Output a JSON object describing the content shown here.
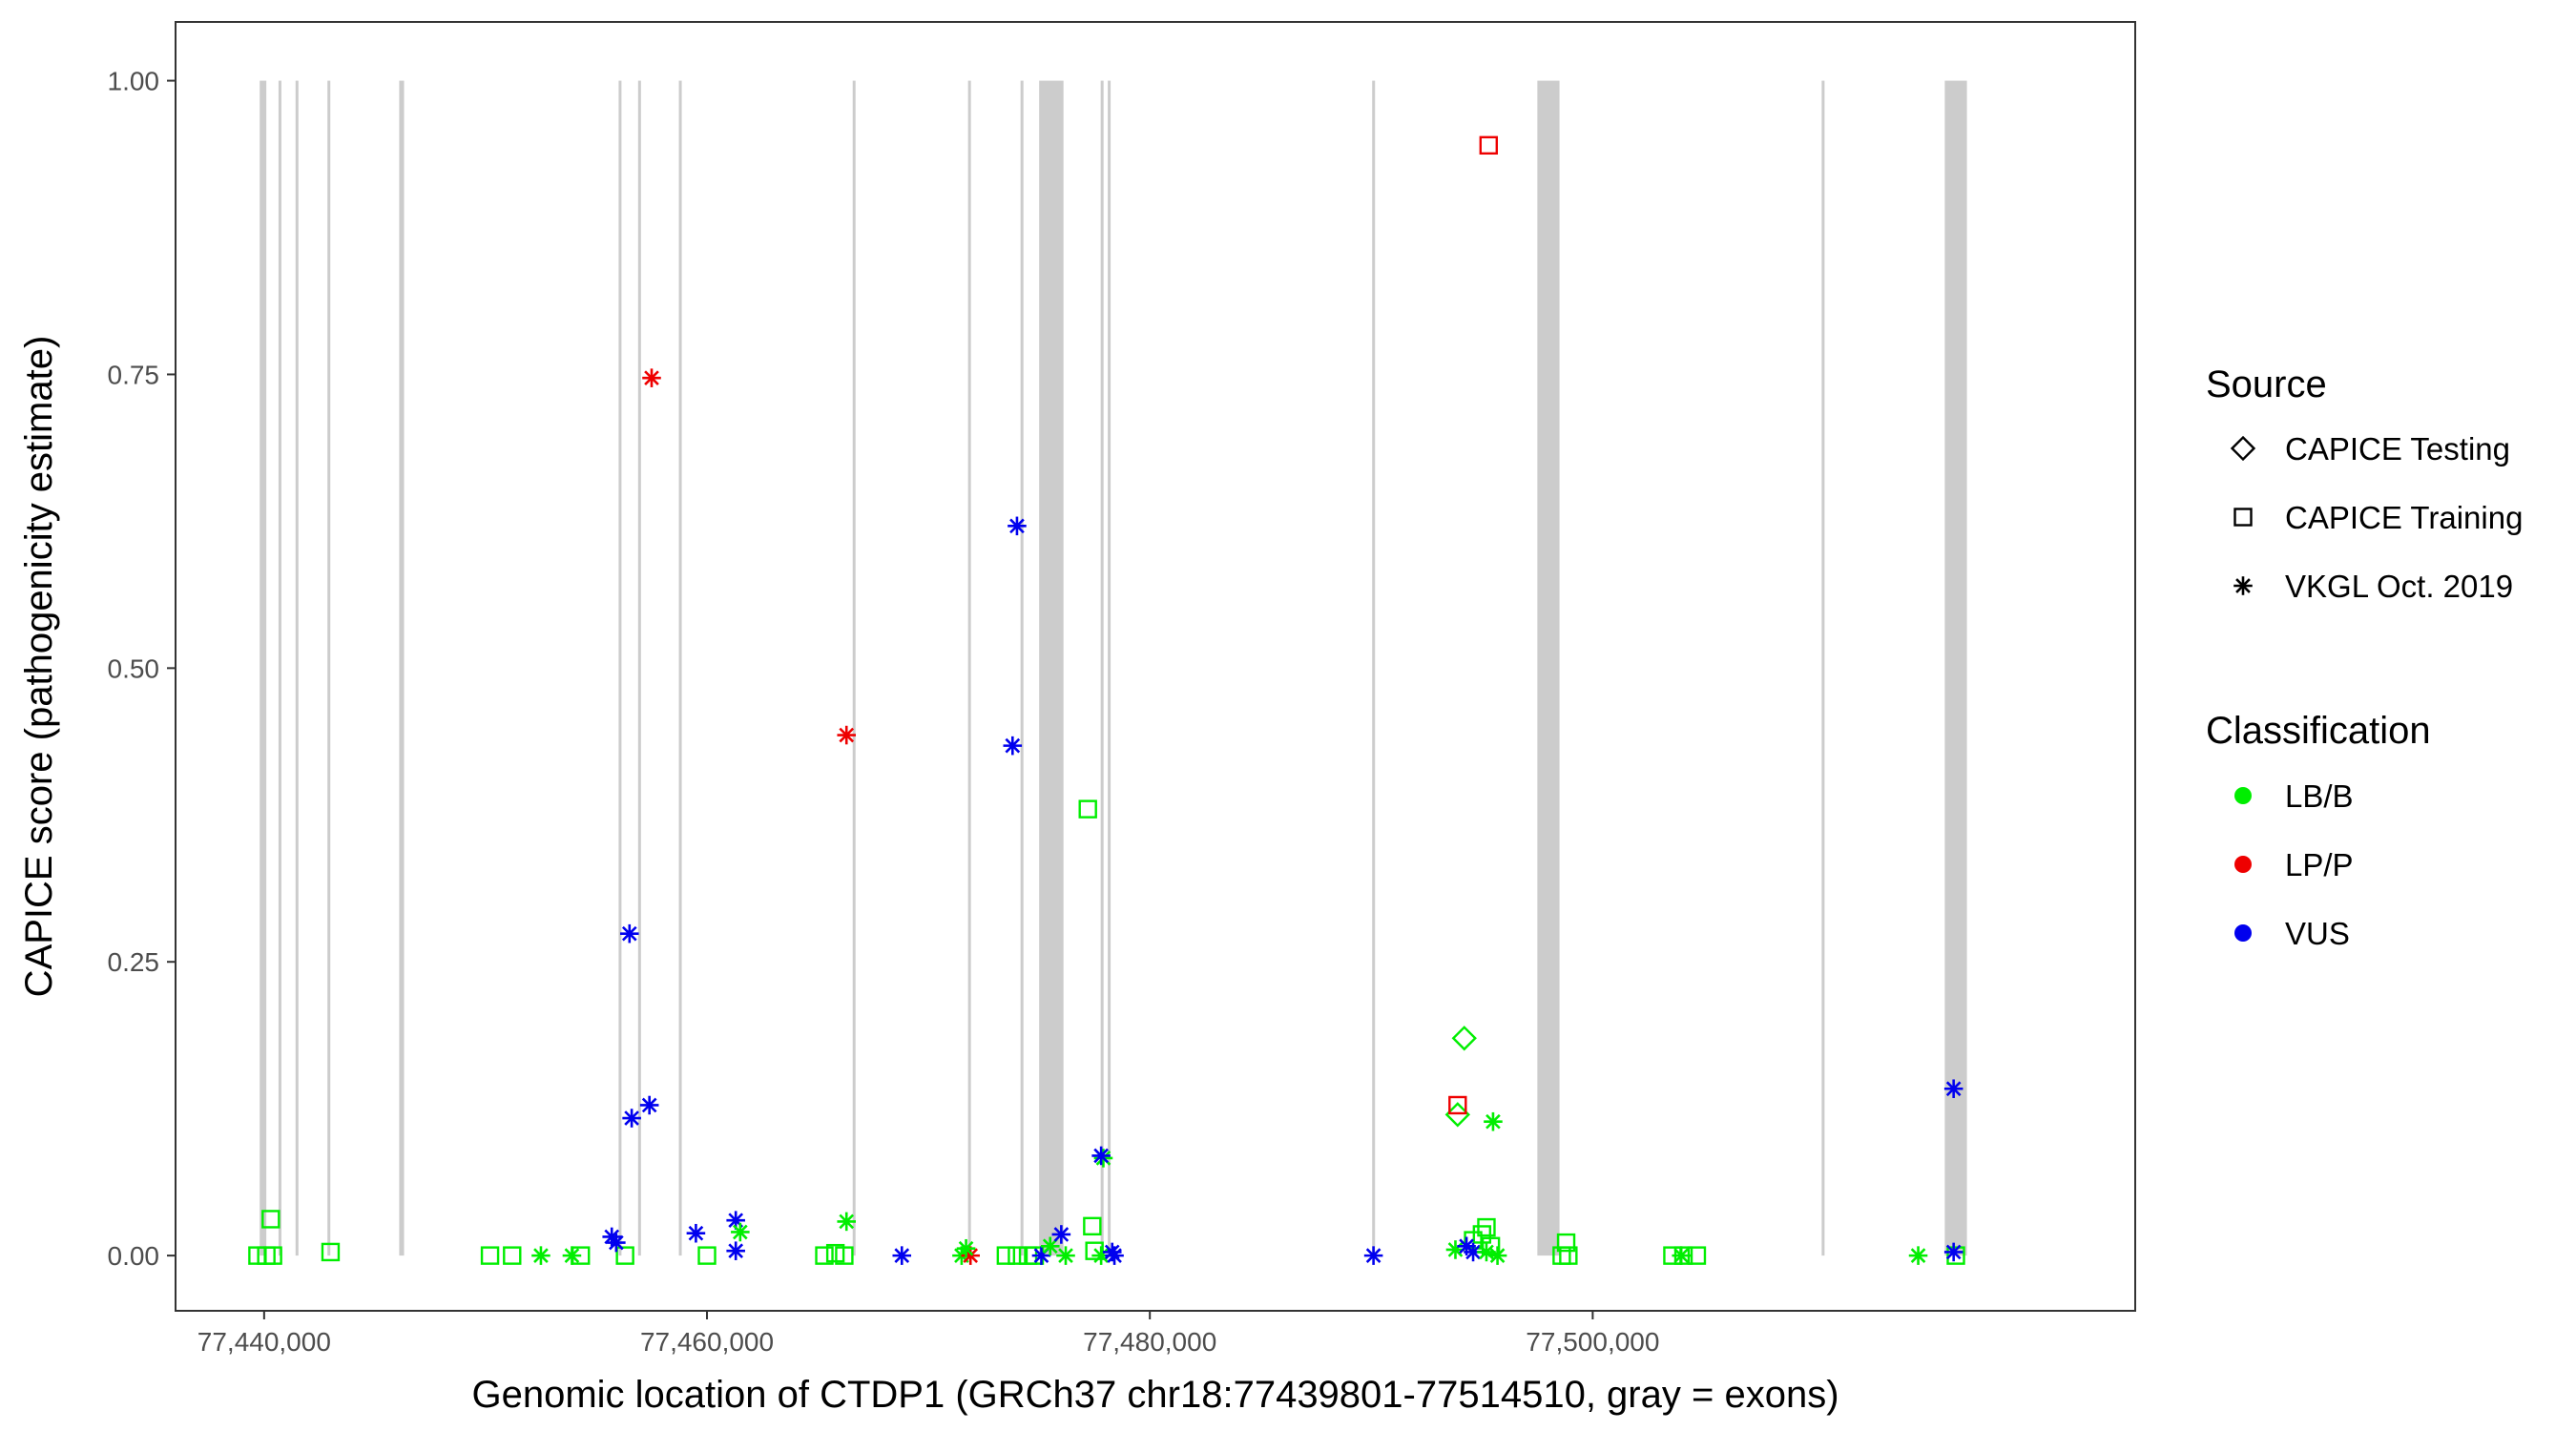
{
  "chart_data": {
    "type": "scatter",
    "xlabel": "Genomic location of CTDP1 (GRCh37 chr18:77439801-77514510, gray = exons)",
    "ylabel": "CAPICE score (pathogenicity estimate)",
    "xlim": [
      77436000,
      77524500
    ],
    "ylim": [
      -0.047,
      1.05
    ],
    "x_ticks": [
      77440000,
      77460000,
      77480000,
      77500000
    ],
    "x_tick_labels": [
      "77,440,000",
      "77,460,000",
      "77,480,000",
      "77,500,000"
    ],
    "y_ticks": [
      0,
      0.25,
      0.5,
      0.75,
      1.0
    ],
    "y_tick_labels": [
      "0.00",
      "0.25",
      "0.50",
      "0.75",
      "1.00"
    ],
    "grid": false,
    "legend_position": "right",
    "exon_band_color": "#cccccc",
    "exons": [
      [
        77439801,
        77440100
      ],
      [
        77440650,
        77440780
      ],
      [
        77441420,
        77441530
      ],
      [
        77442860,
        77442980
      ],
      [
        77446100,
        77446320
      ],
      [
        77456010,
        77456120
      ],
      [
        77456890,
        77457000
      ],
      [
        77458730,
        77458860
      ],
      [
        77466580,
        77466690
      ],
      [
        77471790,
        77471900
      ],
      [
        77474160,
        77474290
      ],
      [
        77475000,
        77476100
      ],
      [
        77477780,
        77477890
      ],
      [
        77478100,
        77478210
      ],
      [
        77490040,
        77490160
      ],
      [
        77497500,
        77498500
      ],
      [
        77510340,
        77510460
      ],
      [
        77515900,
        77516900
      ]
    ],
    "legend": {
      "source_title": "Source",
      "source_entries": [
        {
          "label": "CAPICE Testing",
          "shape": "diamond"
        },
        {
          "label": "CAPICE Training",
          "shape": "square"
        },
        {
          "label": "VKGL Oct. 2019",
          "shape": "asterisk"
        }
      ],
      "class_title": "Classification",
      "class_entries": [
        {
          "label": "LB/B",
          "color": "#00ee00"
        },
        {
          "label": "LP/P",
          "color": "#ee0000"
        },
        {
          "label": "VUS",
          "color": "#0000ee"
        }
      ]
    },
    "series": [
      {
        "source": "CAPICE Testing",
        "shape": "diamond",
        "points": [
          {
            "x": 77494200,
            "y": 0.185,
            "class": "LB/B"
          },
          {
            "x": 77493900,
            "y": 0.12,
            "class": "LB/B"
          }
        ]
      },
      {
        "source": "CAPICE Training",
        "shape": "square",
        "points": [
          {
            "x": 77439700,
            "y": 0.0,
            "class": "LB/B"
          },
          {
            "x": 77440100,
            "y": 0.0,
            "class": "LB/B"
          },
          {
            "x": 77440400,
            "y": 0.0,
            "class": "LB/B"
          },
          {
            "x": 77440300,
            "y": 0.031,
            "class": "LB/B"
          },
          {
            "x": 77443000,
            "y": 0.003,
            "class": "LB/B"
          },
          {
            "x": 77450200,
            "y": 0.0,
            "class": "LB/B"
          },
          {
            "x": 77451200,
            "y": 0.0,
            "class": "LB/B"
          },
          {
            "x": 77454300,
            "y": 0.0,
            "class": "LB/B"
          },
          {
            "x": 77456300,
            "y": 0.0,
            "class": "LB/B"
          },
          {
            "x": 77460000,
            "y": 0.0,
            "class": "LB/B"
          },
          {
            "x": 77465300,
            "y": 0.0,
            "class": "LB/B"
          },
          {
            "x": 77465800,
            "y": 0.002,
            "class": "LB/B"
          },
          {
            "x": 77466200,
            "y": 0.0,
            "class": "LB/B"
          },
          {
            "x": 77473500,
            "y": 0.0,
            "class": "LB/B"
          },
          {
            "x": 77474000,
            "y": 0.0,
            "class": "LB/B"
          },
          {
            "x": 77474500,
            "y": 0.0,
            "class": "LB/B"
          },
          {
            "x": 77474800,
            "y": 0.0,
            "class": "LB/B"
          },
          {
            "x": 77477200,
            "y": 0.38,
            "class": "LB/B"
          },
          {
            "x": 77477400,
            "y": 0.025,
            "class": "LB/B"
          },
          {
            "x": 77477500,
            "y": 0.004,
            "class": "LB/B"
          },
          {
            "x": 77493900,
            "y": 0.128,
            "class": "LP/P"
          },
          {
            "x": 77495300,
            "y": 0.945,
            "class": "LP/P"
          },
          {
            "x": 77494600,
            "y": 0.013,
            "class": "LB/B"
          },
          {
            "x": 77495000,
            "y": 0.018,
            "class": "LB/B"
          },
          {
            "x": 77495200,
            "y": 0.024,
            "class": "LB/B"
          },
          {
            "x": 77495400,
            "y": 0.008,
            "class": "LB/B"
          },
          {
            "x": 77498800,
            "y": 0.011,
            "class": "LB/B"
          },
          {
            "x": 77498600,
            "y": 0.0,
            "class": "LB/B"
          },
          {
            "x": 77498900,
            "y": 0.0,
            "class": "LB/B"
          },
          {
            "x": 77503600,
            "y": 0.0,
            "class": "LB/B"
          },
          {
            "x": 77504100,
            "y": 0.0,
            "class": "LB/B"
          },
          {
            "x": 77504700,
            "y": 0.0,
            "class": "LB/B"
          },
          {
            "x": 77516400,
            "y": 0.0,
            "class": "LB/B"
          }
        ]
      },
      {
        "source": "VKGL Oct. 2019",
        "shape": "asterisk",
        "points": [
          {
            "x": 77452500,
            "y": 0.0,
            "class": "LB/B"
          },
          {
            "x": 77453900,
            "y": 0.0,
            "class": "LB/B"
          },
          {
            "x": 77455700,
            "y": 0.016,
            "class": "VUS"
          },
          {
            "x": 77455900,
            "y": 0.011,
            "class": "VUS"
          },
          {
            "x": 77456500,
            "y": 0.274,
            "class": "VUS"
          },
          {
            "x": 77456600,
            "y": 0.117,
            "class": "VUS"
          },
          {
            "x": 77457400,
            "y": 0.128,
            "class": "VUS"
          },
          {
            "x": 77457500,
            "y": 0.747,
            "class": "LP/P"
          },
          {
            "x": 77459500,
            "y": 0.019,
            "class": "VUS"
          },
          {
            "x": 77461300,
            "y": 0.03,
            "class": "VUS"
          },
          {
            "x": 77461300,
            "y": 0.004,
            "class": "VUS"
          },
          {
            "x": 77461500,
            "y": 0.02,
            "class": "LB/B"
          },
          {
            "x": 77466300,
            "y": 0.443,
            "class": "LP/P"
          },
          {
            "x": 77466300,
            "y": 0.029,
            "class": "LB/B"
          },
          {
            "x": 77468800,
            "y": 0.0,
            "class": "VUS"
          },
          {
            "x": 77471500,
            "y": 0.0,
            "class": "LB/B"
          },
          {
            "x": 77471900,
            "y": 0.0,
            "class": "LP/P"
          },
          {
            "x": 77471700,
            "y": 0.006,
            "class": "LB/B"
          },
          {
            "x": 77473800,
            "y": 0.434,
            "class": "VUS"
          },
          {
            "x": 77474000,
            "y": 0.621,
            "class": "VUS"
          },
          {
            "x": 77475100,
            "y": 0.0,
            "class": "VUS"
          },
          {
            "x": 77475500,
            "y": 0.008,
            "class": "LB/B"
          },
          {
            "x": 77476000,
            "y": 0.018,
            "class": "VUS"
          },
          {
            "x": 77476200,
            "y": 0.0,
            "class": "LB/B"
          },
          {
            "x": 77477900,
            "y": 0.083,
            "class": "LB/B"
          },
          {
            "x": 77477800,
            "y": 0.085,
            "class": "VUS"
          },
          {
            "x": 77477800,
            "y": 0.0,
            "class": "LB/B"
          },
          {
            "x": 77478300,
            "y": 0.003,
            "class": "VUS"
          },
          {
            "x": 77478400,
            "y": 0.0,
            "class": "VUS"
          },
          {
            "x": 77490100,
            "y": 0.0,
            "class": "VUS"
          },
          {
            "x": 77493800,
            "y": 0.005,
            "class": "LB/B"
          },
          {
            "x": 77494300,
            "y": 0.008,
            "class": "VUS"
          },
          {
            "x": 77494600,
            "y": 0.003,
            "class": "VUS"
          },
          {
            "x": 77495200,
            "y": 0.003,
            "class": "LB/B"
          },
          {
            "x": 77495500,
            "y": 0.114,
            "class": "LB/B"
          },
          {
            "x": 77495700,
            "y": 0.0,
            "class": "LB/B"
          },
          {
            "x": 77504000,
            "y": 0.0,
            "class": "LB/B"
          },
          {
            "x": 77514700,
            "y": 0.0,
            "class": "LB/B"
          },
          {
            "x": 77516300,
            "y": 0.142,
            "class": "VUS"
          },
          {
            "x": 77516300,
            "y": 0.003,
            "class": "VUS"
          }
        ]
      }
    ]
  }
}
